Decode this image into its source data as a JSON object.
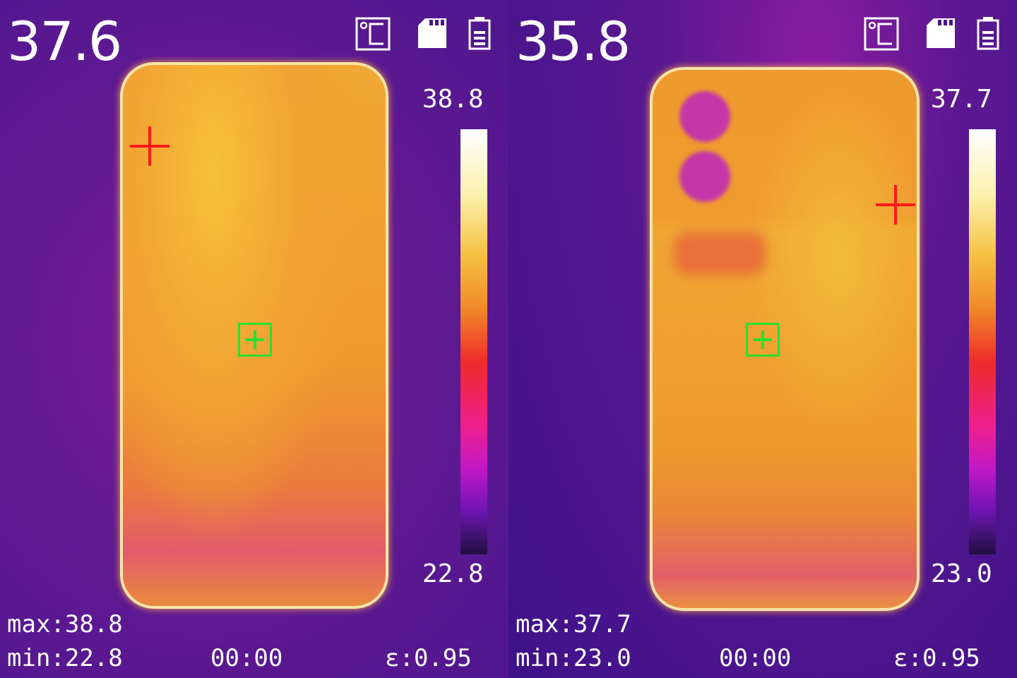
{
  "panels": [
    {
      "center_temp": "37.6",
      "scale_max": "38.8",
      "scale_min": "22.8",
      "max_label": "max:38.8",
      "min_label": "min:22.8",
      "time": "00:00",
      "emissivity": "ε:0.95"
    },
    {
      "center_temp": "35.8",
      "scale_max": "37.7",
      "scale_min": "23.0",
      "max_label": "max:37.7",
      "min_label": "min:23.0",
      "time": "00:00",
      "emissivity": "ε:0.95"
    }
  ],
  "icons": [
    "celsius-unit-icon",
    "sd-card-icon",
    "battery-icon"
  ],
  "colors": {
    "background": "#5a1890",
    "hot_marker": "#ff1a1a",
    "focus_marker": "#27e030",
    "text": "#ffffff"
  }
}
